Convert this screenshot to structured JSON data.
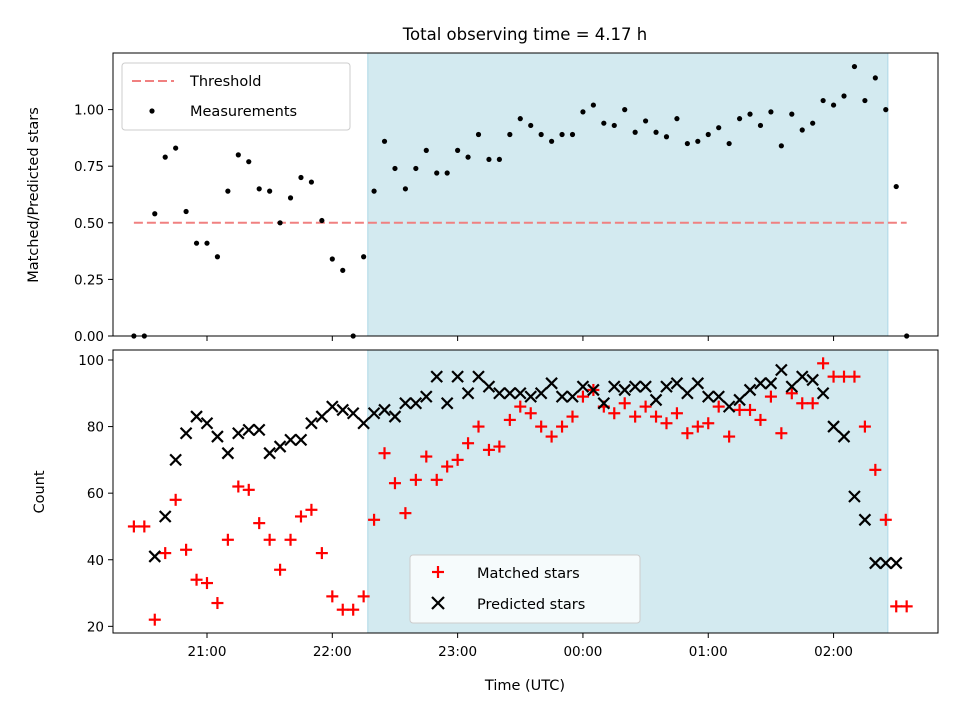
{
  "chart_data": [
    {
      "type": "scatter",
      "title": "Total observing time = 4.17 h",
      "ylabel": "Matched/Predicted stars",
      "xlim": [
        "20:15",
        "02:50"
      ],
      "ylim": [
        0,
        1.25
      ],
      "yticks": [
        "0.00",
        "0.25",
        "0.50",
        "0.75",
        "1.00"
      ],
      "grid": false,
      "legend": "top-left",
      "shaded_region": {
        "start": "22:17",
        "end": "02:26",
        "color": "#d3eaf0"
      },
      "series": [
        {
          "name": "Threshold",
          "style": "dashed-line",
          "color": "#f08080",
          "x": [
            "20:25",
            "02:35"
          ],
          "y": [
            0.5,
            0.5
          ]
        },
        {
          "name": "Measurements",
          "style": "dot",
          "color": "#000000",
          "x": [
            "20:25",
            "20:30",
            "20:35",
            "20:40",
            "20:45",
            "20:50",
            "20:55",
            "21:00",
            "21:05",
            "21:10",
            "21:15",
            "21:20",
            "21:25",
            "21:30",
            "21:35",
            "21:40",
            "21:45",
            "21:50",
            "21:55",
            "22:00",
            "22:05",
            "22:10",
            "22:15",
            "22:20",
            "22:25",
            "22:30",
            "22:35",
            "22:40",
            "22:45",
            "22:50",
            "22:55",
            "23:00",
            "23:05",
            "23:10",
            "23:15",
            "23:20",
            "23:25",
            "23:30",
            "23:35",
            "23:40",
            "23:45",
            "23:50",
            "23:55",
            "00:00",
            "00:05",
            "00:10",
            "00:15",
            "00:20",
            "00:25",
            "00:30",
            "00:35",
            "00:40",
            "00:45",
            "00:50",
            "00:55",
            "01:00",
            "01:05",
            "01:10",
            "01:15",
            "01:20",
            "01:25",
            "01:30",
            "01:35",
            "01:40",
            "01:45",
            "01:50",
            "01:55",
            "02:00",
            "02:05",
            "02:10",
            "02:15",
            "02:20",
            "02:25",
            "02:30"
          ],
          "y": [
            0.0,
            0.0,
            0.54,
            0.79,
            0.83,
            0.55,
            0.41,
            0.41,
            0.35,
            0.64,
            0.8,
            0.77,
            0.65,
            0.64,
            0.5,
            0.61,
            0.7,
            0.68,
            0.51,
            0.34,
            0.29,
            0.0,
            0.35,
            0.64,
            0.86,
            0.74,
            0.65,
            0.74,
            0.82,
            0.72,
            0.72,
            0.82,
            0.79,
            0.89,
            0.78,
            0.78,
            0.89,
            0.96,
            0.93,
            0.89,
            0.86,
            0.89,
            0.89,
            0.99,
            1.02,
            0.94,
            0.93,
            1.0,
            0.9,
            0.95,
            0.9,
            0.88,
            0.96,
            0.85,
            0.86,
            0.89,
            0.92,
            0.85,
            0.96,
            0.98,
            0.93,
            0.99,
            0.84,
            0.98,
            0.91,
            0.94,
            1.04,
            1.02,
            1.06,
            1.19,
            1.04,
            1.14,
            1.0,
            0.66
          ]
        }
      ],
      "extra_points": [
        {
          "x": "02:35",
          "y": 0.0
        }
      ]
    },
    {
      "type": "scatter",
      "xlabel": "Time (UTC)",
      "ylabel": "Count",
      "xticks": [
        "21:00",
        "22:00",
        "23:00",
        "00:00",
        "01:00",
        "02:00"
      ],
      "ylim": [
        18,
        103
      ],
      "yticks": [
        "20",
        "40",
        "60",
        "80",
        "100"
      ],
      "grid": false,
      "legend": "bottom-center",
      "shaded_region": {
        "start": "22:17",
        "end": "02:26",
        "color": "#d3eaf0"
      },
      "series": [
        {
          "name": "Matched stars",
          "marker": "plus",
          "color": "#ff0000",
          "x": [
            "20:25",
            "20:30",
            "20:35",
            "20:40",
            "20:45",
            "20:50",
            "20:55",
            "21:00",
            "21:05",
            "21:10",
            "21:15",
            "21:20",
            "21:25",
            "21:30",
            "21:35",
            "21:40",
            "21:45",
            "21:50",
            "21:55",
            "22:00",
            "22:05",
            "22:10",
            "22:15",
            "22:20",
            "22:25",
            "22:30",
            "22:35",
            "22:40",
            "22:45",
            "22:50",
            "22:55",
            "23:00",
            "23:05",
            "23:10",
            "23:15",
            "23:20",
            "23:25",
            "23:30",
            "23:35",
            "23:40",
            "23:45",
            "23:50",
            "23:55",
            "00:00",
            "00:05",
            "00:10",
            "00:15",
            "00:20",
            "00:25",
            "00:30",
            "00:35",
            "00:40",
            "00:45",
            "00:50",
            "00:55",
            "01:00",
            "01:05",
            "01:10",
            "01:15",
            "01:20",
            "01:25",
            "01:30",
            "01:35",
            "01:40",
            "01:45",
            "01:50",
            "01:55",
            "02:00",
            "02:05",
            "02:10",
            "02:15",
            "02:20",
            "02:25",
            "02:30",
            "02:35"
          ],
          "y": [
            50,
            50,
            22,
            42,
            58,
            43,
            34,
            33,
            27,
            46,
            62,
            61,
            51,
            46,
            37,
            46,
            53,
            55,
            42,
            29,
            25,
            25,
            29,
            52,
            72,
            63,
            54,
            64,
            71,
            64,
            68,
            70,
            75,
            80,
            73,
            74,
            82,
            86,
            84,
            80,
            77,
            80,
            83,
            89,
            91,
            86,
            84,
            87,
            83,
            86,
            83,
            81,
            84,
            78,
            80,
            81,
            86,
            77,
            85,
            85,
            82,
            89,
            78,
            90,
            87,
            87,
            99,
            95,
            95,
            95,
            80,
            67,
            52,
            26,
            26
          ]
        },
        {
          "name": "Predicted stars",
          "marker": "x",
          "color": "#000000",
          "x": [
            "20:35",
            "20:40",
            "20:45",
            "20:50",
            "20:55",
            "21:00",
            "21:05",
            "21:10",
            "21:15",
            "21:20",
            "21:25",
            "21:30",
            "21:35",
            "21:40",
            "21:45",
            "21:50",
            "21:55",
            "22:00",
            "22:05",
            "22:10",
            "22:15",
            "22:20",
            "22:25",
            "22:30",
            "22:35",
            "22:40",
            "22:45",
            "22:50",
            "22:55",
            "23:00",
            "23:05",
            "23:10",
            "23:15",
            "23:20",
            "23:25",
            "23:30",
            "23:35",
            "23:40",
            "23:45",
            "23:50",
            "23:55",
            "00:00",
            "00:05",
            "00:10",
            "00:15",
            "00:20",
            "00:25",
            "00:30",
            "00:35",
            "00:40",
            "00:45",
            "00:50",
            "00:55",
            "01:00",
            "01:05",
            "01:10",
            "01:15",
            "01:20",
            "01:25",
            "01:30",
            "01:35",
            "01:40",
            "01:45",
            "01:50",
            "01:55",
            "02:00",
            "02:05",
            "02:10",
            "02:15",
            "02:20",
            "02:25",
            "02:30"
          ],
          "y": [
            41,
            53,
            70,
            78,
            83,
            81,
            77,
            72,
            78,
            79,
            79,
            72,
            74,
            76,
            76,
            81,
            83,
            86,
            85,
            84,
            81,
            84,
            85,
            83,
            87,
            87,
            89,
            95,
            87,
            95,
            90,
            95,
            92,
            90,
            90,
            90,
            89,
            90,
            93,
            89,
            89,
            92,
            91,
            87,
            92,
            91,
            92,
            92,
            88,
            92,
            93,
            90,
            93,
            89,
            89,
            86,
            88,
            91,
            93,
            93,
            97,
            92,
            95,
            94,
            90,
            80,
            77,
            59,
            52,
            39,
            39,
            39
          ]
        }
      ]
    }
  ]
}
